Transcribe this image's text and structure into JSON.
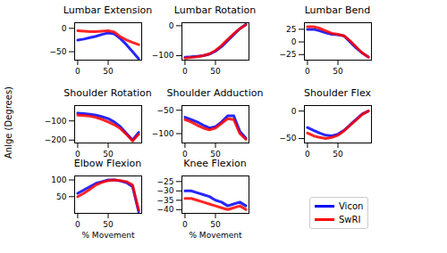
{
  "chart_data": [
    {
      "type": "line",
      "title": "Lumbar Extension",
      "x": [
        0,
        10,
        20,
        30,
        40,
        50,
        60,
        70,
        80,
        90,
        100
      ],
      "xlim": [
        -5,
        105
      ],
      "xticks": [
        0,
        50
      ],
      "ylim": [
        -68,
        12
      ],
      "yticks": [
        -50,
        0
      ],
      "series": [
        {
          "name": "Vicon",
          "color": "#0000ff",
          "values": [
            -25,
            -23,
            -20,
            -17,
            -13,
            -10,
            -12,
            -22,
            -35,
            -50,
            -65
          ]
        },
        {
          "name": "SwRI",
          "color": "#ff0000",
          "values": [
            -5,
            -6,
            -7,
            -7,
            -6,
            -5,
            -8,
            -18,
            -25,
            -30,
            -35
          ]
        }
      ]
    },
    {
      "type": "line",
      "title": "Lumbar Rotation",
      "x": [
        0,
        10,
        20,
        30,
        40,
        50,
        60,
        70,
        80,
        90,
        100
      ],
      "xlim": [
        -5,
        105
      ],
      "xticks": [
        0,
        50
      ],
      "ylim": [
        -115,
        10
      ],
      "yticks": [
        -100,
        0
      ],
      "series": [
        {
          "name": "Vicon",
          "color": "#0000ff",
          "values": [
            -105,
            -104,
            -102,
            -100,
            -95,
            -85,
            -70,
            -50,
            -30,
            -10,
            5
          ]
        },
        {
          "name": "SwRI",
          "color": "#ff0000",
          "values": [
            -108,
            -106,
            -104,
            -100,
            -94,
            -83,
            -66,
            -46,
            -27,
            -10,
            3
          ]
        }
      ]
    },
    {
      "type": "line",
      "title": "Lumbar Bend",
      "x": [
        0,
        10,
        20,
        30,
        40,
        50,
        60,
        70,
        80,
        90,
        100
      ],
      "xlim": [
        -5,
        105
      ],
      "xticks": [
        0,
        50
      ],
      "ylim": [
        -36,
        38
      ],
      "yticks": [
        -25,
        0,
        25
      ],
      "series": [
        {
          "name": "Vicon",
          "color": "#0000ff",
          "values": [
            25,
            25,
            22,
            18,
            15,
            14,
            12,
            0,
            -12,
            -22,
            -30
          ]
        },
        {
          "name": "SwRI",
          "color": "#ff0000",
          "values": [
            30,
            30,
            27,
            22,
            17,
            15,
            12,
            2,
            -10,
            -22,
            -30
          ]
        }
      ]
    },
    {
      "type": "line",
      "title": "Shoulder Rotation",
      "ylabel": "Anlge (Degrees)",
      "x": [
        0,
        10,
        20,
        30,
        40,
        50,
        60,
        70,
        80,
        90,
        100
      ],
      "xlim": [
        -5,
        105
      ],
      "xticks": [
        0,
        50
      ],
      "ylim": [
        -215,
        -20
      ],
      "yticks": [
        -200,
        -100
      ],
      "series": [
        {
          "name": "Vicon",
          "color": "#0000ff",
          "values": [
            -60,
            -62,
            -65,
            -70,
            -78,
            -88,
            -105,
            -130,
            -165,
            -200,
            -160
          ]
        },
        {
          "name": "SwRI",
          "color": "#ff0000",
          "values": [
            -70,
            -72,
            -75,
            -82,
            -92,
            -105,
            -120,
            -140,
            -170,
            -205,
            -170
          ]
        }
      ]
    },
    {
      "type": "line",
      "title": "Shoulder Adduction",
      "x": [
        0,
        10,
        20,
        30,
        40,
        50,
        60,
        70,
        80,
        90,
        100
      ],
      "xlim": [
        -5,
        105
      ],
      "xticks": [
        0,
        50
      ],
      "ylim": [
        -120,
        -40
      ],
      "yticks": [
        -100,
        -50
      ],
      "series": [
        {
          "name": "Vicon",
          "color": "#0000ff",
          "values": [
            -65,
            -70,
            -75,
            -82,
            -88,
            -85,
            -75,
            -62,
            -62,
            -95,
            -110
          ]
        },
        {
          "name": "SwRI",
          "color": "#ff0000",
          "values": [
            -70,
            -75,
            -82,
            -88,
            -92,
            -88,
            -78,
            -68,
            -70,
            -100,
            -112
          ]
        }
      ]
    },
    {
      "type": "line",
      "title": "Shoulder Flex",
      "x": [
        0,
        10,
        20,
        30,
        40,
        50,
        60,
        70,
        80,
        90,
        100
      ],
      "xlim": [
        -5,
        105
      ],
      "xticks": [
        0,
        50
      ],
      "ylim": [
        -58,
        10
      ],
      "yticks": [
        -50,
        0
      ],
      "series": [
        {
          "name": "Vicon",
          "color": "#0000ff",
          "values": [
            -30,
            -35,
            -40,
            -44,
            -45,
            -42,
            -35,
            -25,
            -15,
            -5,
            0
          ]
        },
        {
          "name": "SwRI",
          "color": "#ff0000",
          "values": [
            -40,
            -45,
            -48,
            -50,
            -48,
            -44,
            -36,
            -26,
            -16,
            -6,
            0
          ]
        }
      ]
    },
    {
      "type": "line",
      "title": "Elbow Flexion",
      "xlabel": "% Movement",
      "x": [
        0,
        10,
        20,
        30,
        40,
        50,
        60,
        70,
        80,
        90,
        100
      ],
      "xlim": [
        -5,
        105
      ],
      "xticks": [
        0,
        50
      ],
      "ylim": [
        0,
        112
      ],
      "yticks": [
        50,
        100
      ],
      "series": [
        {
          "name": "Vicon",
          "color": "#0000ff",
          "values": [
            60,
            70,
            80,
            90,
            95,
            100,
            100,
            97,
            92,
            80,
            5
          ]
        },
        {
          "name": "SwRI",
          "color": "#ff0000",
          "values": [
            50,
            60,
            72,
            85,
            93,
            98,
            100,
            98,
            95,
            85,
            10
          ]
        }
      ]
    },
    {
      "type": "line",
      "title": "Knee Flexion",
      "xlabel": "% Movement",
      "legend": "right",
      "x": [
        0,
        10,
        20,
        30,
        40,
        50,
        60,
        70,
        80,
        90,
        100
      ],
      "xlim": [
        -5,
        105
      ],
      "xticks": [
        0,
        50
      ],
      "ylim": [
        -42,
        -22
      ],
      "yticks": [
        -40,
        -35,
        -30,
        -25
      ],
      "series": [
        {
          "name": "Vicon",
          "color": "#0000ff",
          "values": [
            -30,
            -30,
            -31,
            -32,
            -33,
            -35,
            -36,
            -38,
            -37,
            -36,
            -38
          ]
        },
        {
          "name": "SwRI",
          "color": "#ff0000",
          "values": [
            -34,
            -34,
            -35,
            -36,
            -37,
            -38,
            -39,
            -40,
            -39,
            -38,
            -40
          ]
        }
      ]
    }
  ]
}
